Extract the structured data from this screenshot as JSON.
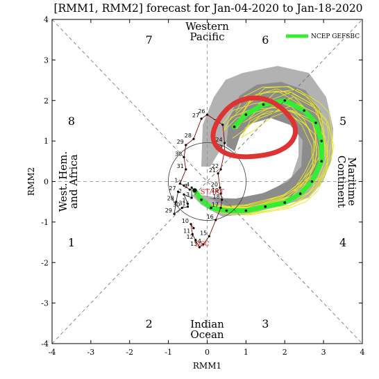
{
  "chart_data": {
    "type": "scatter",
    "title": "[RMM1, RMM2] forecast for Jan-04-2020 to Jan-18-2020",
    "xlabel": "RMM1",
    "ylabel": "RMM2",
    "xlim": [
      -4,
      4
    ],
    "ylim": [
      -4,
      4
    ],
    "x_ticks": [
      "-4",
      "-3",
      "-2",
      "-1",
      "0",
      "1",
      "2",
      "3",
      "4"
    ],
    "y_ticks": [
      "-4",
      "-3",
      "-2",
      "-1",
      "0",
      "1",
      "2",
      "3",
      "4"
    ],
    "grid": "diagonal phase dividers and dashed axes",
    "unit_circle_radius": 1,
    "legend": {
      "placement": "top-right",
      "entries": [
        {
          "label": "NCEP GEFSBC",
          "color": "#33ee33"
        }
      ]
    },
    "phase_numbers": [
      {
        "label": "1",
        "x": -3.5,
        "y": -1.5
      },
      {
        "label": "2",
        "x": -1.5,
        "y": -3.5
      },
      {
        "label": "3",
        "x": 1.5,
        "y": -3.5
      },
      {
        "label": "4",
        "x": 3.5,
        "y": -1.5
      },
      {
        "label": "5",
        "x": 3.5,
        "y": 1.5
      },
      {
        "label": "6",
        "x": 1.5,
        "y": 3.5
      },
      {
        "label": "7",
        "x": -1.5,
        "y": 3.5
      },
      {
        "label": "8",
        "x": -3.5,
        "y": 1.5
      }
    ],
    "regions": {
      "top": [
        "Western",
        "Pacific"
      ],
      "bottom": [
        "Indian",
        "Ocean"
      ],
      "left": [
        "West. Hem.",
        "and Africa"
      ],
      "right": [
        "Maritime",
        "Continent"
      ]
    },
    "observed_series": [
      {
        "name": "December",
        "color": "#880000",
        "end_label": "DEC",
        "points": [
          {
            "label": "",
            "x": -0.35,
            "y": -1.15
          },
          {
            "label": "10",
            "x": -0.42,
            "y": -1.05
          },
          {
            "label": "11",
            "x": -0.38,
            "y": -1.3
          },
          {
            "label": "12",
            "x": -0.3,
            "y": -1.45
          },
          {
            "label": "13",
            "x": -0.2,
            "y": -1.62
          },
          {
            "label": "14",
            "x": -0.1,
            "y": -1.55
          },
          {
            "label": "15",
            "x": 0.05,
            "y": -1.35
          },
          {
            "label": "16",
            "x": 0.22,
            "y": -0.95
          },
          {
            "label": "17",
            "x": 0.35,
            "y": -0.65
          },
          {
            "label": "18",
            "x": 0.38,
            "y": -0.45
          },
          {
            "label": "19",
            "x": 0.35,
            "y": -0.3
          },
          {
            "label": "20",
            "x": 0.33,
            "y": -0.15
          },
          {
            "label": "21",
            "x": 0.28,
            "y": 0.2
          },
          {
            "label": "22",
            "x": 0.35,
            "y": 0.3
          },
          {
            "label": "23",
            "x": 0.45,
            "y": 0.75
          },
          {
            "label": "24",
            "x": 0.45,
            "y": 0.95
          },
          {
            "label": "25",
            "x": 0.4,
            "y": 1.4
          },
          {
            "label": "26",
            "x": 0.0,
            "y": 1.65
          },
          {
            "label": "27",
            "x": -0.15,
            "y": 1.55
          },
          {
            "label": "28",
            "x": -0.35,
            "y": 1.05
          },
          {
            "label": "29",
            "x": -0.55,
            "y": 0.9
          },
          {
            "label": "30",
            "x": -0.6,
            "y": 0.6
          },
          {
            "label": "31",
            "x": -0.55,
            "y": 0.3
          },
          {
            "label": "1",
            "x": -0.7,
            "y": -0.05
          },
          {
            "label": "2",
            "x": -0.6,
            "y": -0.1
          },
          {
            "label": "3",
            "x": -0.45,
            "y": -0.2
          }
        ]
      },
      {
        "name": "January",
        "color": "#222222",
        "end_label": "START",
        "points": [
          {
            "label": "27",
            "x": -0.75,
            "y": -0.25
          },
          {
            "label": "28",
            "x": -0.8,
            "y": -0.5
          },
          {
            "label": "29",
            "x": -0.85,
            "y": -0.8
          },
          {
            "label": "30",
            "x": -0.65,
            "y": -0.65
          },
          {
            "label": "31",
            "x": -0.5,
            "y": -0.62
          },
          {
            "label": "1",
            "x": -0.5,
            "y": -0.55
          },
          {
            "label": "2",
            "x": -0.6,
            "y": -0.32
          },
          {
            "label": "3",
            "x": -0.4,
            "y": -0.4
          },
          {
            "label": "4",
            "x": -0.4,
            "y": -0.15
          },
          {
            "label": "",
            "x": -0.32,
            "y": -0.22
          }
        ]
      }
    ],
    "forecast_mean": {
      "name": "NCEP GEFSBC",
      "color": "#33ee33",
      "points": [
        {
          "x": -0.32,
          "y": -0.22
        },
        {
          "x": -0.15,
          "y": -0.45
        },
        {
          "x": 0.1,
          "y": -0.65
        },
        {
          "x": 0.5,
          "y": -0.72
        },
        {
          "x": 1.0,
          "y": -0.72
        },
        {
          "x": 1.5,
          "y": -0.62
        },
        {
          "x": 2.0,
          "y": -0.52
        },
        {
          "x": 2.4,
          "y": -0.3
        },
        {
          "x": 2.7,
          "y": 0.0
        },
        {
          "x": 2.95,
          "y": 0.5
        },
        {
          "x": 2.95,
          "y": 1.0
        },
        {
          "x": 2.8,
          "y": 1.45
        },
        {
          "x": 2.5,
          "y": 1.75
        },
        {
          "x": 2.0,
          "y": 2.0
        },
        {
          "x": 1.45,
          "y": 1.9
        },
        {
          "x": 1.0,
          "y": 1.65
        },
        {
          "x": 0.7,
          "y": 1.35
        }
      ]
    },
    "annotation": {
      "type": "hand-drawn oval",
      "color": "#dd3333",
      "center": [
        1.2,
        1.3
      ],
      "radii": [
        1.05,
        0.72
      ]
    }
  }
}
